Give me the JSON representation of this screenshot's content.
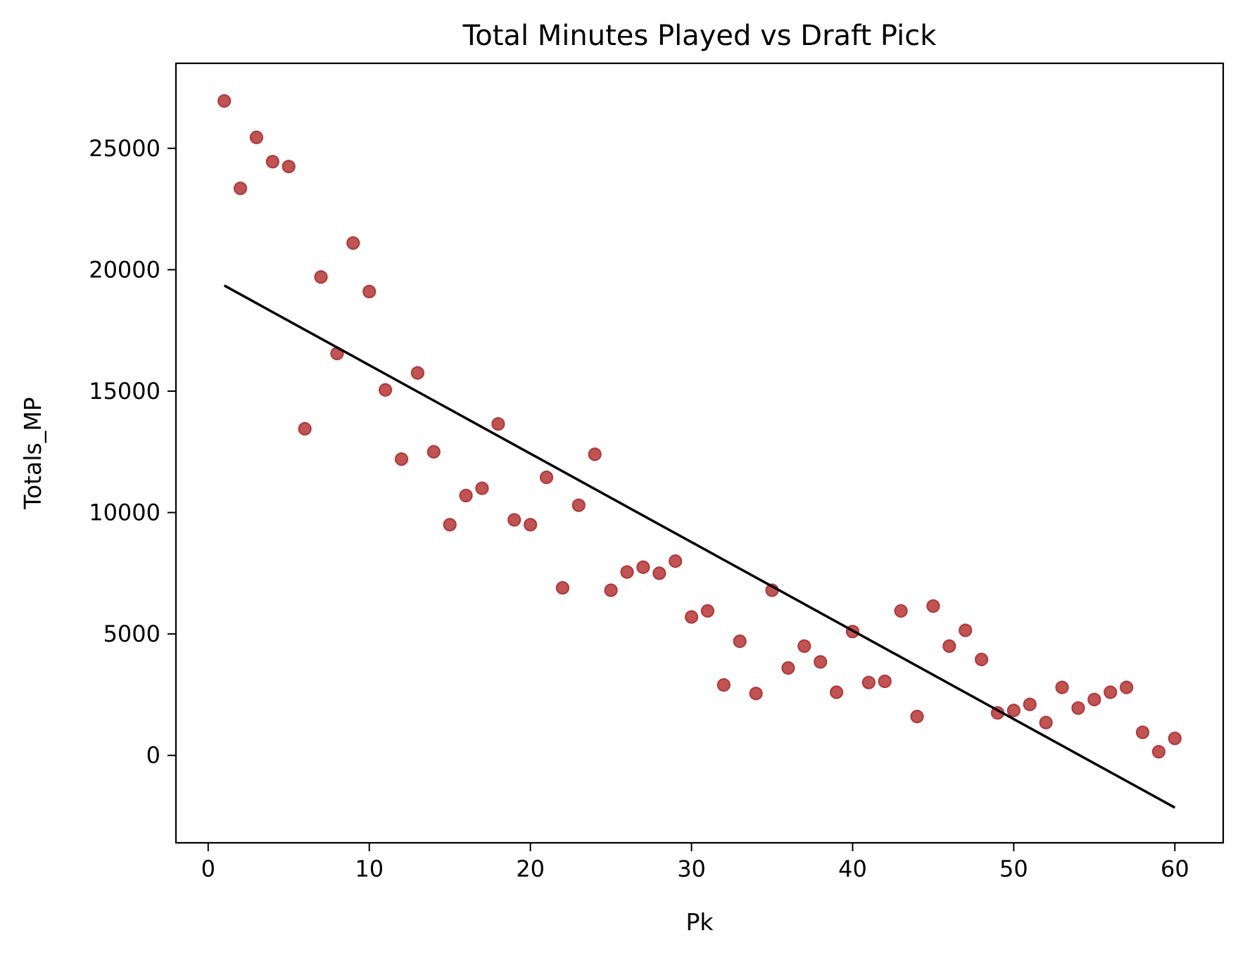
{
  "chart_data": {
    "type": "scatter",
    "title": "Total Minutes Played vs Draft Pick",
    "xlabel": "Pk",
    "ylabel": "Totals_MP",
    "xlim": [
      -2,
      63
    ],
    "ylim": [
      -3600,
      28500
    ],
    "xticks": [
      0,
      10,
      20,
      30,
      40,
      50,
      60
    ],
    "yticks": [
      0,
      5000,
      10000,
      15000,
      20000,
      25000
    ],
    "grid": false,
    "marker_color": "#c05454",
    "marker_edge_color": "#b03a3a",
    "line_color": "#000000",
    "points": [
      [
        1,
        26950
      ],
      [
        2,
        23350
      ],
      [
        3,
        25450
      ],
      [
        4,
        24450
      ],
      [
        5,
        24250
      ],
      [
        6,
        13450
      ],
      [
        7,
        19700
      ],
      [
        8,
        16550
      ],
      [
        9,
        21100
      ],
      [
        10,
        19100
      ],
      [
        11,
        15050
      ],
      [
        12,
        12200
      ],
      [
        13,
        15750
      ],
      [
        14,
        12500
      ],
      [
        15,
        9500
      ],
      [
        16,
        10700
      ],
      [
        17,
        11000
      ],
      [
        18,
        13650
      ],
      [
        19,
        9700
      ],
      [
        20,
        9500
      ],
      [
        21,
        11450
      ],
      [
        22,
        6900
      ],
      [
        23,
        10300
      ],
      [
        24,
        12400
      ],
      [
        25,
        6800
      ],
      [
        26,
        7550
      ],
      [
        27,
        7750
      ],
      [
        28,
        7500
      ],
      [
        29,
        8000
      ],
      [
        30,
        5700
      ],
      [
        31,
        5950
      ],
      [
        32,
        2900
      ],
      [
        33,
        4700
      ],
      [
        34,
        2550
      ],
      [
        35,
        6800
      ],
      [
        36,
        3600
      ],
      [
        37,
        4500
      ],
      [
        38,
        3850
      ],
      [
        39,
        2600
      ],
      [
        40,
        5100
      ],
      [
        41,
        3000
      ],
      [
        42,
        3050
      ],
      [
        43,
        5950
      ],
      [
        44,
        1600
      ],
      [
        45,
        6150
      ],
      [
        46,
        4500
      ],
      [
        47,
        5150
      ],
      [
        48,
        3950
      ],
      [
        49,
        1750
      ],
      [
        50,
        1850
      ],
      [
        51,
        2100
      ],
      [
        52,
        1350
      ],
      [
        53,
        2800
      ],
      [
        54,
        1950
      ],
      [
        55,
        2300
      ],
      [
        56,
        2600
      ],
      [
        57,
        2800
      ],
      [
        58,
        950
      ],
      [
        59,
        150
      ],
      [
        60,
        700
      ]
    ],
    "trendline": {
      "x": [
        1,
        60
      ],
      "y": [
        19350,
        -2150
      ]
    }
  }
}
